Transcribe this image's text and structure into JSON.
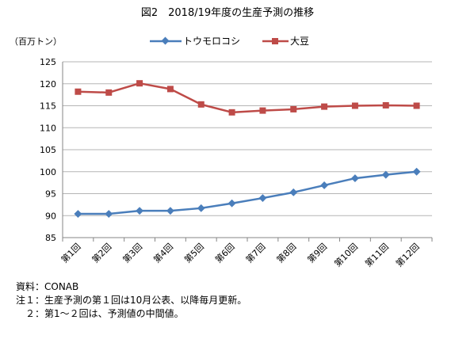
{
  "chart_data": {
    "type": "line",
    "title": "図2　2018/19年度の生産予測の推移",
    "ylabel": "（百万トン）",
    "xlabel": "",
    "ylim": [
      85,
      125
    ],
    "ytick_step": 5,
    "grid": true,
    "legend_position": "top",
    "categories": [
      "第1回",
      "第2回",
      "第3回",
      "第4回",
      "第5回",
      "第6回",
      "第7回",
      "第8回",
      "第9回",
      "第10回",
      "第11回",
      "第12回"
    ],
    "series": [
      {
        "name": "トウモロコシ",
        "color": "#4a7ebb",
        "marker": "diamond",
        "values": [
          90.4,
          90.4,
          91.1,
          91.1,
          91.7,
          92.8,
          94.0,
          95.3,
          96.9,
          98.5,
          99.3,
          100.0
        ]
      },
      {
        "name": "大豆",
        "color": "#be4b48",
        "marker": "square",
        "values": [
          118.2,
          118.0,
          120.1,
          118.8,
          115.3,
          113.5,
          113.9,
          114.2,
          114.8,
          115.0,
          115.1,
          115.0
        ]
      }
    ]
  },
  "notes": {
    "source": "資料：CONAB",
    "note1": "注１：生産予測の第１回は10月公表、以降毎月更新。",
    "note2": "　２：第1～２回は、予測値の中間値。"
  }
}
